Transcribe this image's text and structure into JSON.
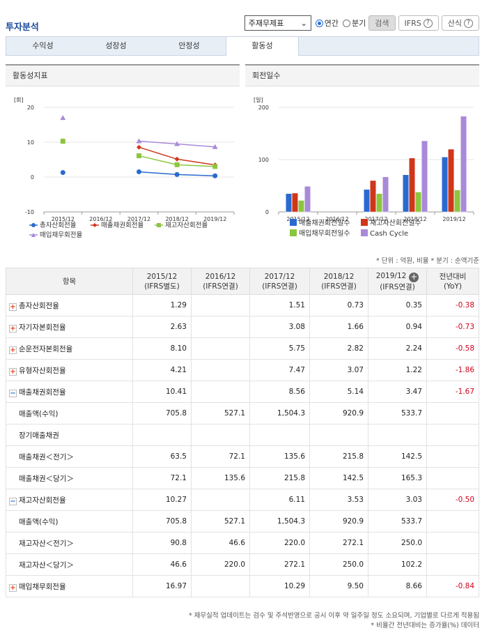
{
  "header": {
    "title": "투자분석",
    "select_value": "주재무제표",
    "radio_annual": "연간",
    "radio_quarter": "분기",
    "search_btn": "검색",
    "ifrs_btn": "IFRS",
    "formula_btn": "산식"
  },
  "tabs": [
    {
      "label": "수익성"
    },
    {
      "label": "성장성"
    },
    {
      "label": "안정성"
    },
    {
      "label": "활동성"
    }
  ],
  "left_chart": {
    "panel_title": "활동성지표",
    "unit": "[회]",
    "categories": [
      "2015/12",
      "2016/12",
      "2017/12",
      "2018/12",
      "2019/12"
    ],
    "y_ticks": [
      "20",
      "10",
      "0",
      "-10"
    ],
    "legend": [
      "총자산회전율",
      "매출채권회전율",
      "재고자산회전율",
      "매입채무회전율"
    ]
  },
  "right_chart": {
    "panel_title": "회전일수",
    "unit": "[일]",
    "categories": [
      "2015/12",
      "2016/12",
      "2017/12",
      "2018/12",
      "2019/12"
    ],
    "y_ticks": [
      "200",
      "100",
      "0"
    ],
    "legend": [
      "매출채권회전일수",
      "재고자산회전일수",
      "매입채무회전일수",
      "Cash Cycle"
    ]
  },
  "chart_data": [
    {
      "type": "line",
      "title": "활동성지표",
      "ylabel": "[회]",
      "ylim": [
        -10,
        20
      ],
      "categories": [
        "2015/12",
        "2016/12",
        "2017/12",
        "2018/12",
        "2019/12"
      ],
      "series": [
        {
          "name": "총자산회전율",
          "color": "#2a6ad0",
          "values": [
            1.29,
            null,
            1.51,
            0.73,
            0.35
          ]
        },
        {
          "name": "매출채권회전율",
          "color": "#d0361a",
          "values": [
            10.41,
            null,
            8.56,
            5.14,
            3.47
          ]
        },
        {
          "name": "재고자산회전율",
          "color": "#8cc63f",
          "values": [
            10.27,
            null,
            6.11,
            3.53,
            3.03
          ]
        },
        {
          "name": "매입채무회전율",
          "color": "#a98ad8",
          "values": [
            16.97,
            null,
            10.29,
            9.5,
            8.66
          ]
        }
      ],
      "legend": "bottom"
    },
    {
      "type": "bar",
      "title": "회전일수",
      "ylabel": "[일]",
      "ylim": [
        0,
        200
      ],
      "categories": [
        "2015/12",
        "2016/12",
        "2017/12",
        "2018/12",
        "2019/12"
      ],
      "series": [
        {
          "name": "매출채권회전일수",
          "color": "#2a6ad0",
          "values": [
            35,
            0,
            43,
            71,
            105
          ]
        },
        {
          "name": "재고자산회전일수",
          "color": "#d0361a",
          "values": [
            36,
            0,
            60,
            103,
            120
          ]
        },
        {
          "name": "매입채무회전일수",
          "color": "#8cc63f",
          "values": [
            22,
            0,
            35,
            38,
            42
          ]
        },
        {
          "name": "Cash Cycle",
          "color": "#a98ad8",
          "values": [
            49,
            0,
            67,
            136,
            183
          ]
        }
      ],
      "legend": "bottom"
    }
  ],
  "note": "* 단위 : 억원, 비율   * 분기 : 순액기준",
  "table": {
    "col_item": "항목",
    "columns": [
      {
        "l1": "2015/12",
        "l2": "(IFRS별도)"
      },
      {
        "l1": "2016/12",
        "l2": "(IFRS연결)"
      },
      {
        "l1": "2017/12",
        "l2": "(IFRS연결)"
      },
      {
        "l1": "2018/12",
        "l2": "(IFRS연결)"
      },
      {
        "l1": "2019/12",
        "l2": "(IFRS연결)"
      }
    ],
    "col_yoy_l1": "전년대비",
    "col_yoy_l2": "(YoY)",
    "rows": [
      {
        "label": "총자산회전율",
        "kind": "plus",
        "v": [
          "1.29",
          "",
          "1.51",
          "0.73",
          "0.35"
        ],
        "yoy": "-0.38"
      },
      {
        "label": "자기자본회전율",
        "kind": "plus",
        "v": [
          "2.63",
          "",
          "3.08",
          "1.66",
          "0.94"
        ],
        "yoy": "-0.73"
      },
      {
        "label": "순운전자본회전율",
        "kind": "plus",
        "v": [
          "8.10",
          "",
          "5.75",
          "2.82",
          "2.24"
        ],
        "yoy": "-0.58"
      },
      {
        "label": "유형자산회전율",
        "kind": "plus",
        "v": [
          "4.21",
          "",
          "7.47",
          "3.07",
          "1.22"
        ],
        "yoy": "-1.86"
      },
      {
        "label": "매출채권회전율",
        "kind": "minus",
        "v": [
          "10.41",
          "",
          "8.56",
          "5.14",
          "3.47"
        ],
        "yoy": "-1.67"
      },
      {
        "label": "매출액(수익)",
        "kind": "sub",
        "v": [
          "705.8",
          "527.1",
          "1,504.3",
          "920.9",
          "533.7"
        ],
        "yoy": ""
      },
      {
        "label": "장기매출채권",
        "kind": "sub",
        "v": [
          "",
          "",
          "",
          "",
          ""
        ],
        "yoy": ""
      },
      {
        "label": "매출채권＜전기＞",
        "kind": "sub",
        "v": [
          "63.5",
          "72.1",
          "135.6",
          "215.8",
          "142.5"
        ],
        "yoy": ""
      },
      {
        "label": "매출채권＜당기＞",
        "kind": "sub",
        "v": [
          "72.1",
          "135.6",
          "215.8",
          "142.5",
          "165.3"
        ],
        "yoy": ""
      },
      {
        "label": "재고자산회전율",
        "kind": "minus",
        "v": [
          "10.27",
          "",
          "6.11",
          "3.53",
          "3.03"
        ],
        "yoy": "-0.50"
      },
      {
        "label": "매출액(수익)",
        "kind": "sub",
        "v": [
          "705.8",
          "527.1",
          "1,504.3",
          "920.9",
          "533.7"
        ],
        "yoy": ""
      },
      {
        "label": "재고자산＜전기＞",
        "kind": "sub",
        "v": [
          "90.8",
          "46.6",
          "220.0",
          "272.1",
          "250.0"
        ],
        "yoy": ""
      },
      {
        "label": "재고자산＜당기＞",
        "kind": "sub",
        "v": [
          "46.6",
          "220.0",
          "272.1",
          "250.0",
          "102.2"
        ],
        "yoy": ""
      },
      {
        "label": "매입채무회전율",
        "kind": "plus",
        "v": [
          "16.97",
          "",
          "10.29",
          "9.50",
          "8.66"
        ],
        "yoy": "-0.84"
      }
    ]
  },
  "footnote1": "* 재무실적 업데이트는 검수 및 주석반영으로 공시 이후 약 일주일 정도 소요되며, 기업별로 다르게 적용됨",
  "footnote2": "* 비율간 전년대비는 증가율(%) 데이터"
}
